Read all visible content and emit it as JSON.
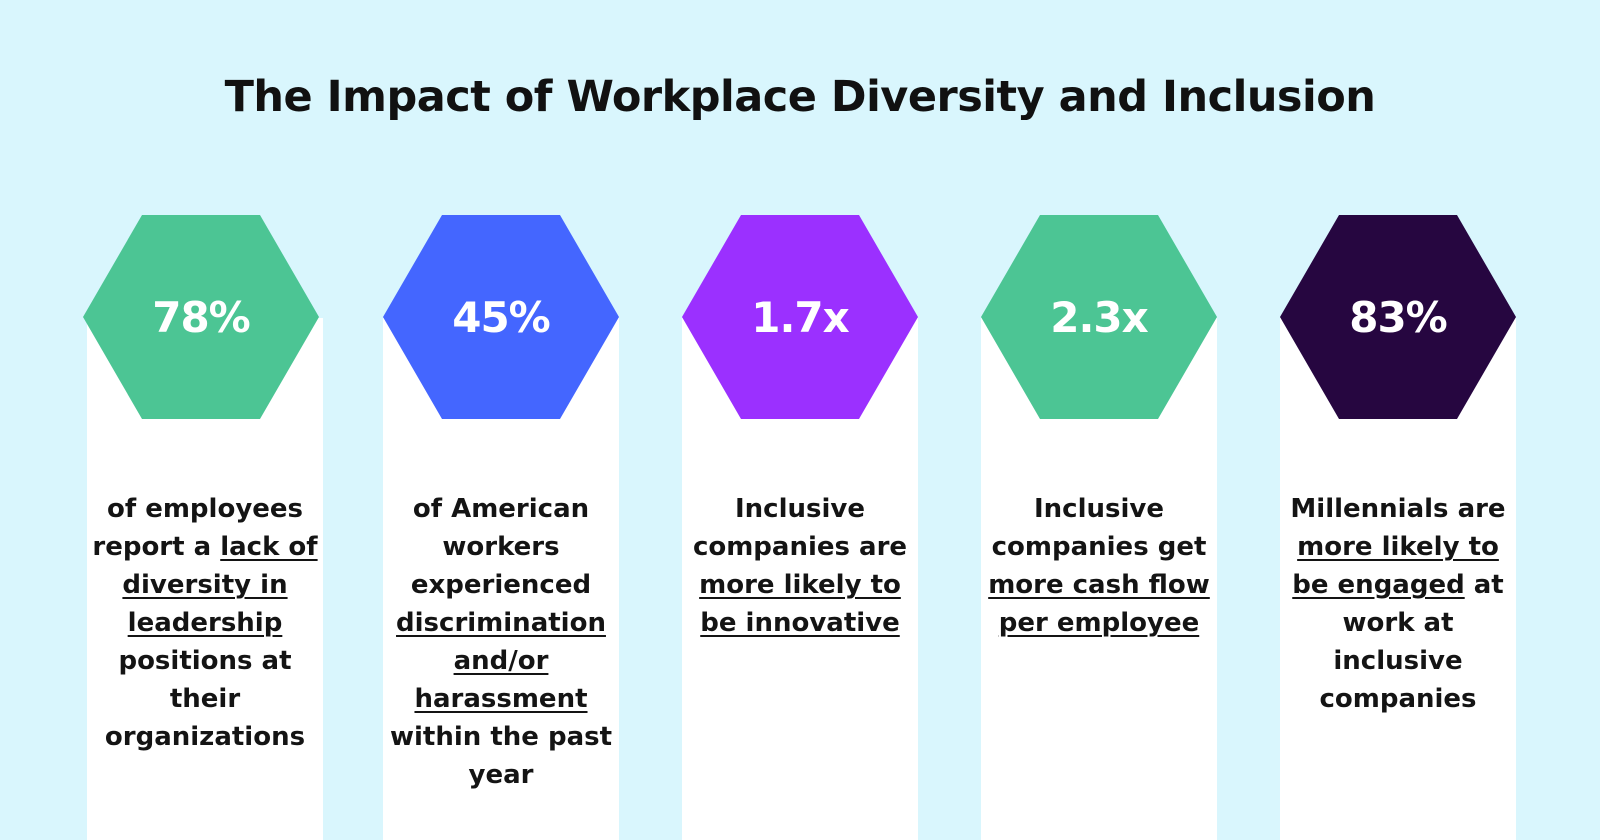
{
  "title": "The Impact of Workplace Diversity and Inclusion",
  "stats": [
    {
      "value": "78%",
      "color": "#4cc594",
      "description": [
        {
          "text": "of employees report a ",
          "underline": false
        },
        {
          "text": "lack of diversity in leadership",
          "underline": true
        },
        {
          "text": " positions at their organizations",
          "underline": false
        }
      ]
    },
    {
      "value": "45%",
      "color": "#4466ff",
      "description": [
        {
          "text": "of American workers experienced ",
          "underline": false
        },
        {
          "text": "discrimination and/or harassment",
          "underline": true
        },
        {
          "text": " within the past year",
          "underline": false
        }
      ]
    },
    {
      "value": "1.7x",
      "color": "#9b30ff",
      "description": [
        {
          "text": "Inclusive companies are ",
          "underline": false
        },
        {
          "text": "more likely to be innovative",
          "underline": true
        }
      ]
    },
    {
      "value": "2.3x",
      "color": "#4cc594",
      "description": [
        {
          "text": "Inclusive companies get ",
          "underline": false
        },
        {
          "text": "more cash flow per employee",
          "underline": true
        }
      ]
    },
    {
      "value": "83%",
      "color": "#260640",
      "description": [
        {
          "text": "Millennials are ",
          "underline": false
        },
        {
          "text": "more likely to be engaged",
          "underline": true
        },
        {
          "text": " at work at inclusive companies",
          "underline": false
        }
      ]
    }
  ]
}
